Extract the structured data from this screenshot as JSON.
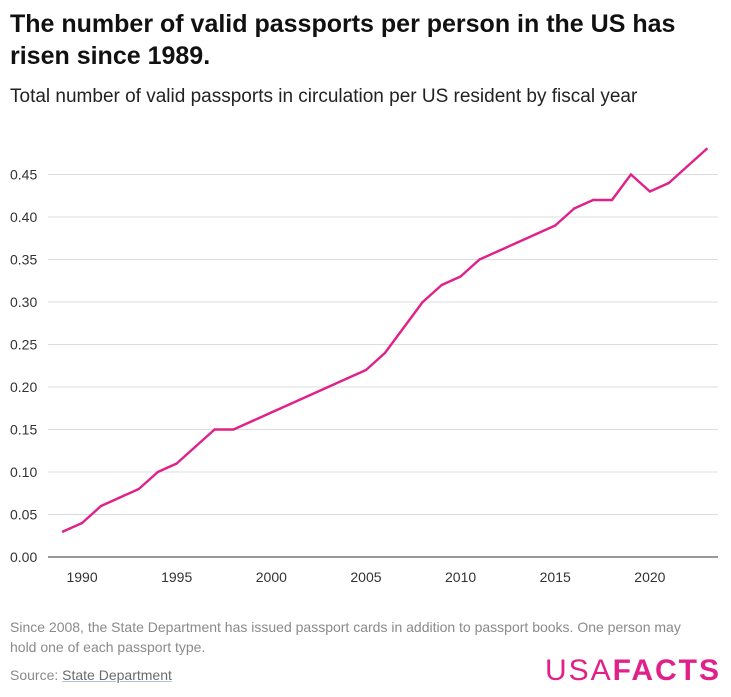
{
  "header": {
    "title": "The number of valid passports per person in the US has risen since 1989.",
    "subtitle": "Total number of valid passports in circulation per US resident by fiscal year"
  },
  "footer": {
    "footnote": "Since 2008, the State Department has issued passport cards in addition to passport books. One person may hold one of each passport type.",
    "source_prefix": "Source: ",
    "source_link": "State Department",
    "logo_usa": "USA",
    "logo_facts": "FACTS"
  },
  "colors": {
    "line": "#e0218a",
    "brand": "#e0218a"
  },
  "chart_data": {
    "type": "line",
    "title": "The number of valid passports per person in the US has risen since 1989.",
    "subtitle": "Total number of valid passports in circulation per US resident by fiscal year",
    "xlabel": "",
    "ylabel": "",
    "x": [
      1989,
      1990,
      1991,
      1992,
      1993,
      1994,
      1995,
      1996,
      1997,
      1998,
      1999,
      2000,
      2001,
      2002,
      2003,
      2004,
      2005,
      2006,
      2007,
      2008,
      2009,
      2010,
      2011,
      2012,
      2013,
      2014,
      2015,
      2016,
      2017,
      2018,
      2019,
      2020,
      2021,
      2022,
      2023
    ],
    "series": [
      {
        "values": [
          0.03,
          0.04,
          0.06,
          0.07,
          0.08,
          0.1,
          0.11,
          0.13,
          0.15,
          0.15,
          0.16,
          0.17,
          0.18,
          0.19,
          0.2,
          0.21,
          0.22,
          0.24,
          0.27,
          0.3,
          0.32,
          0.33,
          0.35,
          0.36,
          0.37,
          0.38,
          0.39,
          0.41,
          0.42,
          0.42,
          0.45,
          0.43,
          0.44,
          0.46,
          0.48
        ]
      }
    ],
    "xlim": [
      1988.2,
      2023.6
    ],
    "ylim": [
      0,
      0.48
    ],
    "xticks": [
      1990,
      1995,
      2000,
      2005,
      2010,
      2015,
      2020
    ],
    "xtick_labels": [
      "1990",
      "1995",
      "2000",
      "2005",
      "2010",
      "2015",
      "2020"
    ],
    "yticks": [
      0,
      0.05,
      0.1,
      0.15,
      0.2,
      0.25,
      0.3,
      0.35,
      0.4,
      0.45
    ],
    "ytick_labels": [
      "0.00",
      "0.05",
      "0.10",
      "0.15",
      "0.20",
      "0.25",
      "0.30",
      "0.35",
      "0.40",
      "0.45"
    ],
    "grid": true,
    "legend": "none"
  }
}
